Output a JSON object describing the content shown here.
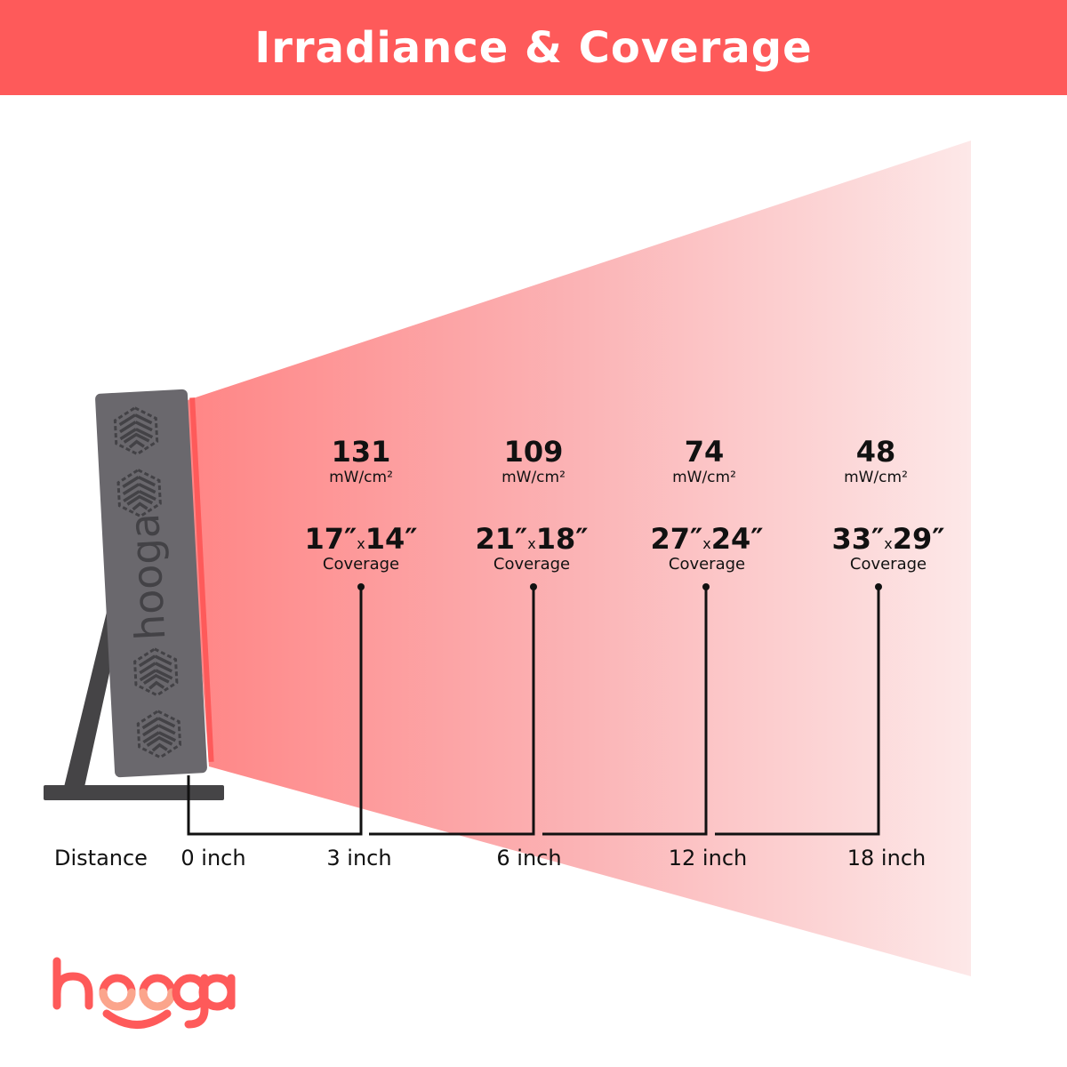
{
  "title": "Irradiance & Coverage",
  "colors": {
    "brand": "#fe5a5a",
    "beam_start": "#ff8585",
    "beam_end": "#fde8e8",
    "device": "#6a686d",
    "stand": "#454446"
  },
  "device": {
    "logo_text": "hooga",
    "icon": "hexagon-led-pattern-icon"
  },
  "unit": "mW/cm²",
  "coverage_label": "Coverage",
  "distance_label": "Distance",
  "distances": [
    "0 inch",
    "3 inch",
    "6 inch",
    "12 inch",
    "18 inch"
  ],
  "measurements": [
    {
      "distance": "3 inch",
      "irradiance": "131",
      "width": "17″",
      "height": "14″"
    },
    {
      "distance": "6 inch",
      "irradiance": "109",
      "width": "21″",
      "height": "18″"
    },
    {
      "distance": "12 inch",
      "irradiance": "74",
      "width": "27″",
      "height": "24″"
    },
    {
      "distance": "18 inch",
      "irradiance": "48",
      "width": "33″",
      "height": "29″"
    }
  ],
  "times_symbol": "x",
  "brand_logo": "hooga"
}
